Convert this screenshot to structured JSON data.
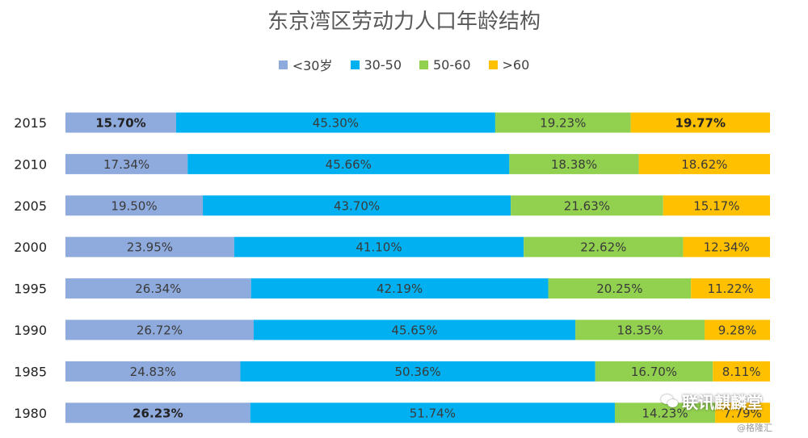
{
  "chart_data": {
    "type": "bar",
    "orientation": "horizontal",
    "stacked": "percent",
    "title": "东京湾区劳动力人口年龄结构",
    "categories": [
      "2015",
      "2010",
      "2005",
      "2000",
      "1995",
      "1990",
      "1985",
      "1980"
    ],
    "series": [
      {
        "name": "<30岁",
        "color": "#8faadc",
        "values": [
          15.7,
          17.34,
          19.5,
          23.95,
          26.34,
          26.72,
          24.83,
          26.23
        ]
      },
      {
        "name": "30-50",
        "color": "#00b0f0",
        "values": [
          45.3,
          45.66,
          43.7,
          41.1,
          42.19,
          45.65,
          50.36,
          51.74
        ]
      },
      {
        "name": "50-60",
        "color": "#92d050",
        "values": [
          19.23,
          18.38,
          21.63,
          22.62,
          20.25,
          18.35,
          16.7,
          14.23
        ]
      },
      {
        "name": ">60",
        "color": "#ffc000",
        "values": [
          19.77,
          18.62,
          15.17,
          12.34,
          11.22,
          9.28,
          8.11,
          7.79
        ]
      }
    ],
    "data_labels": [
      [
        "15.70%",
        "45.30%",
        "19.23%",
        "19.77%"
      ],
      [
        "17.34%",
        "45.66%",
        "18.38%",
        "18.62%"
      ],
      [
        "19.50%",
        "43.70%",
        "21.63%",
        "15.17%"
      ],
      [
        "23.95%",
        "41.10%",
        "22.62%",
        "12.34%"
      ],
      [
        "26.34%",
        "42.19%",
        "20.25%",
        "11.22%"
      ],
      [
        "26.72%",
        "45.65%",
        "18.35%",
        "9.28%"
      ],
      [
        "24.83%",
        "50.36%",
        "16.70%",
        "8.11%"
      ],
      [
        "26.23%",
        "51.74%",
        "14.23%",
        "7.79%"
      ]
    ],
    "bold_labels": [
      [
        true,
        false,
        false,
        true
      ],
      [
        false,
        false,
        false,
        false
      ],
      [
        false,
        false,
        false,
        false
      ],
      [
        false,
        false,
        false,
        false
      ],
      [
        false,
        false,
        false,
        false
      ],
      [
        false,
        false,
        false,
        false
      ],
      [
        false,
        false,
        false,
        false
      ],
      [
        true,
        false,
        false,
        false
      ]
    ],
    "legend_position": "top",
    "grid": false
  },
  "watermark": {
    "icon": "wechat-icon",
    "text": "联讯麒麟堂"
  },
  "source_note": "@格隆汇"
}
